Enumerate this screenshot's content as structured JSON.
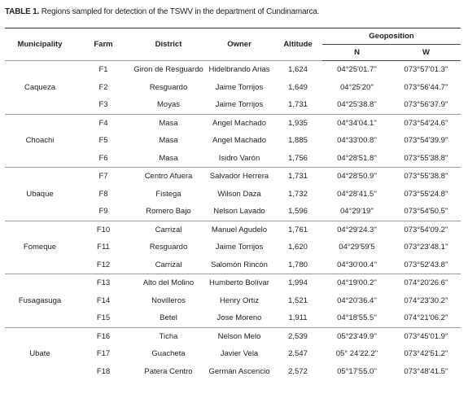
{
  "caption": {
    "label": "TABLE 1.",
    "text": "Regions sampled for detection of the TSWV in the department of Cundinamarca."
  },
  "header": {
    "municipality": "Municipality",
    "farm": "Farm",
    "district": "District",
    "owner": "Owner",
    "altitude": "Altitude",
    "geoposition": "Geoposition",
    "n": "N",
    "w": "W"
  },
  "groups": [
    {
      "municipality": "Caqueza",
      "rows": [
        [
          "F1",
          "Giron de Resguardo",
          "Hidelbrando Arias",
          "1,624",
          "04°25'01.7''",
          "073°57'01.3''"
        ],
        [
          "F2",
          "Resguardo",
          "Jaime Torrijos",
          "1,649",
          "04°25'20''",
          "073°56'44.7''"
        ],
        [
          "F3",
          "Moyas",
          "Jaime Torrijos",
          "1,731",
          "04°25'38.8''",
          "073°56'37.9''"
        ]
      ]
    },
    {
      "municipality": "Choachi",
      "rows": [
        [
          "F4",
          "Masa",
          "Angel Machado",
          "1,935",
          "04°34'04.1''",
          "073°54'24.6''"
        ],
        [
          "F5",
          "Masa",
          "Angel Machado",
          "1,885",
          "04°33'00.8''",
          "073°54'39.9''"
        ],
        [
          "F6",
          "Masa",
          "Isidro Varón",
          "1,756",
          "04°28'51.8''",
          "073°55'38.8''"
        ]
      ]
    },
    {
      "municipality": "Ubaque",
      "rows": [
        [
          "F7",
          "Centro Afuera",
          "Salvador Herrera",
          "1,731",
          "04°28'50.9''",
          "073°55'38.8''"
        ],
        [
          "F8",
          "Fistega",
          "Wilson Daza",
          "1,732",
          "04°28'41.5''",
          "073°55'24.8''"
        ],
        [
          "F9",
          "Romero Bajo",
          "Nelson Lavado",
          "1,596",
          "04°29'19''",
          "073°54'50.5''"
        ]
      ]
    },
    {
      "municipality": "Fomeque",
      "rows": [
        [
          "F10",
          "Carrizal",
          "Manuel Agudelo",
          "1,761",
          "04°29'24.3''",
          "073°54'09.2''"
        ],
        [
          "F11",
          "Resguardo",
          "Jaime Torrijos",
          "1,620",
          "04°29'59'5",
          "073°23'48.1''"
        ],
        [
          "F12",
          "Carrizal",
          "Salomón Rincón",
          "1,780",
          "04°30'00.4''",
          "073°52'43.8''"
        ]
      ]
    },
    {
      "municipality": "Fusagasuga",
      "rows": [
        [
          "F13",
          "Alto del Molino",
          "Humberto Bolívar",
          "1,994",
          "04°19'00.2''",
          "074°20'26.6''"
        ],
        [
          "F14",
          "Novilleros",
          "Henry Ortiz",
          "1,521",
          "04°20'36.4''",
          "074°23'30.2''"
        ],
        [
          "F15",
          "Betel",
          "Jose Moreno",
          "1,911",
          "04°18'55.5''",
          "074°21'06.2''"
        ]
      ]
    },
    {
      "municipality": "Ubate",
      "rows": [
        [
          "F16",
          "Ticha",
          "Nelson Melo",
          "2,539",
          "05°23'49.9''",
          "073°45'01.9''"
        ],
        [
          "F17",
          "Guacheta",
          "Javier Vela",
          "2,547",
          "05° 24'22.2''",
          "073°42'51.2''"
        ],
        [
          "F18",
          "Patera Centro",
          "Germán Ascencio",
          "2,572",
          "05°17'55.0''",
          "073°48'41.5''"
        ]
      ]
    }
  ]
}
